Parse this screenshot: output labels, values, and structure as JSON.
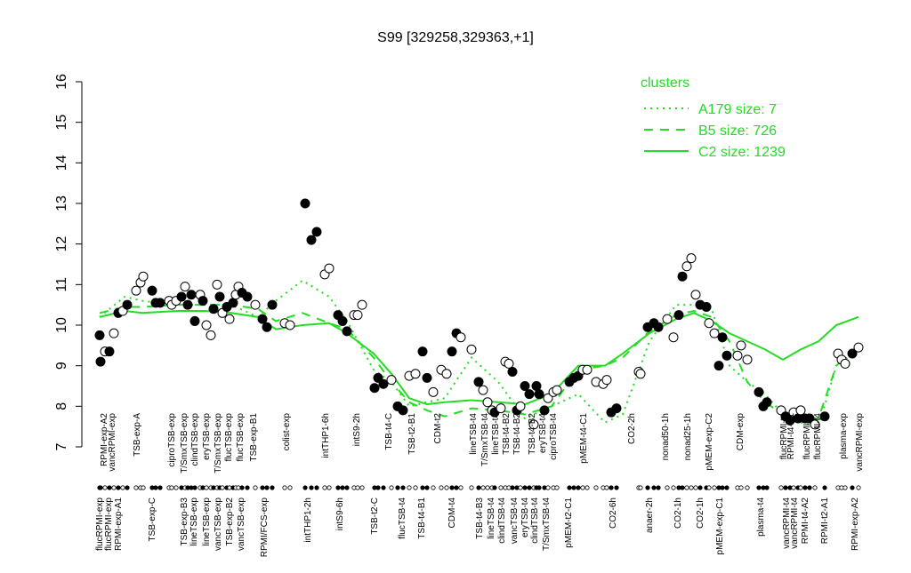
{
  "chart_data": {
    "type": "scatter",
    "title": "S99 [329258,329363,+1]",
    "xlim": [
      100,
      980
    ],
    "ylim": [
      7,
      16
    ],
    "yticks": [
      7,
      8,
      9,
      10,
      11,
      12,
      13,
      14,
      15,
      16
    ],
    "x": [
      112,
      113,
      118,
      123,
      128,
      133,
      138,
      143,
      153,
      158,
      161,
      171,
      175,
      180,
      190,
      193,
      198,
      204,
      208,
      211,
      215,
      219,
      225,
      228,
      232,
      237,
      240,
      244,
      247,
      250,
      255,
      258,
      262,
      265,
      268,
      272,
      278,
      287,
      295,
      300,
      306,
      320,
      326,
      343,
      350,
      356,
      365,
      370,
      380,
      385,
      390,
      398,
      402,
      407,
      421,
      425,
      431,
      440,
      447,
      453,
      460,
      467,
      475,
      480,
      487,
      496,
      502,
      508,
      513,
      518,
      530,
      538,
      543,
      548,
      553,
      556,
      563,
      568,
      572,
      576,
      581,
      585,
      590,
      595,
      600,
      603,
      606,
      612,
      616,
      622,
      626,
      640,
      645,
      650,
      655,
      660,
      670,
      678,
      682,
      687,
      693,
      718,
      720,
      728,
      735,
      740,
      750,
      757,
      763,
      767,
      772,
      777,
      782,
      787,
      794,
      797,
      803,
      808,
      812,
      817,
      829,
      833,
      840,
      853,
      858,
      862,
      878,
      883,
      888,
      892,
      897,
      900,
      905,
      910,
      916,
      927,
      942,
      946,
      950,
      958,
      965
    ],
    "values": [
      9.75,
      9.1,
      9.35,
      9.35,
      9.8,
      10.3,
      10.35,
      10.5,
      10.85,
      11.05,
      11.2,
      10.85,
      10.55,
      10.55,
      10.6,
      10.5,
      10.6,
      10.7,
      10.95,
      10.5,
      10.75,
      10.1,
      10.75,
      10.6,
      10.0,
      9.75,
      10.4,
      11.0,
      10.7,
      10.3,
      10.45,
      10.15,
      10.55,
      10.75,
      10.95,
      10.8,
      10.7,
      10.5,
      10.15,
      9.95,
      10.5,
      10.05,
      10.0,
      13.0,
      12.1,
      12.3,
      11.25,
      11.4,
      10.25,
      10.1,
      9.85,
      10.25,
      10.25,
      10.5,
      8.45,
      8.7,
      8.55,
      8.65,
      8.0,
      7.9,
      8.75,
      8.8,
      9.35,
      8.7,
      8.35,
      8.9,
      8.8,
      9.35,
      9.8,
      9.7,
      9.4,
      8.6,
      8.4,
      8.1,
      7.9,
      7.85,
      7.95,
      9.1,
      9.05,
      8.85,
      7.9,
      8.0,
      8.5,
      8.3,
      7.55,
      8.5,
      8.3,
      7.9,
      8.2,
      8.35,
      8.4,
      8.6,
      8.7,
      8.75,
      8.9,
      8.9,
      8.6,
      8.55,
      8.65,
      7.85,
      7.95,
      8.85,
      8.8,
      9.95,
      10.05,
      9.95,
      10.15,
      9.7,
      10.25,
      11.2,
      11.45,
      11.65,
      10.75,
      10.5,
      10.45,
      10.05,
      9.8,
      9.0,
      9.7,
      9.25,
      9.25,
      9.5,
      9.15,
      8.35,
      8.0,
      8.1,
      7.9,
      7.75,
      7.65,
      7.85,
      7.7,
      7.9,
      7.7,
      7.7,
      7.55,
      7.75,
      9.3,
      9.15,
      9.05,
      9.3,
      9.45
    ],
    "filled": [
      true,
      true,
      false,
      true,
      false,
      true,
      false,
      true,
      false,
      false,
      false,
      true,
      true,
      true,
      false,
      false,
      false,
      true,
      false,
      true,
      true,
      true,
      false,
      true,
      false,
      false,
      true,
      false,
      true,
      false,
      true,
      false,
      true,
      false,
      false,
      true,
      true,
      false,
      true,
      true,
      true,
      false,
      false,
      true,
      true,
      true,
      false,
      false,
      true,
      true,
      true,
      false,
      false,
      false,
      true,
      true,
      true,
      false,
      true,
      true,
      false,
      false,
      true,
      true,
      false,
      false,
      false,
      true,
      true,
      false,
      false,
      true,
      false,
      false,
      false,
      true,
      false,
      false,
      false,
      true,
      true,
      false,
      true,
      true,
      false,
      true,
      true,
      true,
      false,
      false,
      false,
      true,
      true,
      true,
      false,
      false,
      false,
      false,
      false,
      true,
      true,
      false,
      false,
      true,
      true,
      true,
      false,
      false,
      true,
      true,
      false,
      false,
      false,
      true,
      true,
      false,
      false,
      true,
      true,
      true,
      false,
      false,
      false,
      true,
      true,
      true,
      false,
      true,
      true,
      false,
      true,
      false,
      true,
      true,
      false,
      true,
      false,
      false,
      false,
      true,
      false
    ],
    "line_x": [
      112,
      140,
      160,
      200,
      230,
      260,
      290,
      310,
      340,
      370,
      390,
      420,
      440,
      460,
      480,
      500,
      530,
      560,
      590,
      620,
      650,
      680,
      700,
      730,
      760,
      780,
      800,
      820,
      840,
      860,
      880,
      900,
      920,
      940,
      965
    ],
    "legend_title": "clusters",
    "series": [
      {
        "name": "A179 size: 7",
        "color": "#22dd22",
        "dash": "dotted",
        "values": [
          10.2,
          10.7,
          10.6,
          10.5,
          10.5,
          10.5,
          10.2,
          10.6,
          11.1,
          10.7,
          10.1,
          8.9,
          8.6,
          8.0,
          8.1,
          8.2,
          9.2,
          8.6,
          7.7,
          8.0,
          8.3,
          7.6,
          7.8,
          9.6,
          10.5,
          10.5,
          10.4,
          9.0,
          8.6,
          8.3,
          7.8,
          7.6,
          7.5,
          9.0,
          9.4
        ]
      },
      {
        "name": "B5 size: 726",
        "color": "#22dd22",
        "dash": "dashed",
        "values": [
          10.3,
          10.45,
          10.45,
          10.5,
          10.5,
          10.5,
          10.4,
          10.1,
          10.3,
          10.05,
          9.9,
          9.2,
          8.6,
          8.1,
          7.9,
          7.75,
          7.95,
          7.9,
          7.8,
          8.0,
          8.9,
          9.0,
          9.2,
          9.85,
          10.25,
          10.35,
          10.2,
          9.6,
          8.6,
          8.1,
          7.8,
          7.7,
          7.7,
          9.0,
          9.5
        ]
      },
      {
        "name": "C2 size: 1239",
        "color": "#22dd22",
        "dash": "solid",
        "values": [
          10.2,
          10.35,
          10.3,
          10.35,
          10.35,
          10.3,
          10.2,
          9.9,
          10.0,
          10.05,
          9.8,
          9.3,
          8.8,
          8.2,
          8.05,
          8.1,
          8.15,
          8.1,
          8.05,
          8.3,
          9.0,
          9.0,
          9.3,
          9.8,
          10.15,
          10.3,
          10.1,
          9.8,
          9.6,
          9.4,
          9.15,
          9.4,
          9.6,
          10.0,
          10.2
        ]
      }
    ],
    "top_labels": [
      {
        "x": 117,
        "text": "RPMI-exp-A2"
      },
      {
        "x": 126,
        "text": "vancRPMI-exp"
      },
      {
        "x": 154,
        "text": "TSB-exp-A"
      },
      {
        "x": 193,
        "text": "ciproTSB-exp"
      },
      {
        "x": 207,
        "text": "T/SmxTSB-exp"
      },
      {
        "x": 219,
        "text": "clindTSB-exp"
      },
      {
        "x": 232,
        "text": "eryTSB-exp"
      },
      {
        "x": 245,
        "text": "T/SmxTSB-exp"
      },
      {
        "x": 257,
        "text": "flucTSB-exp"
      },
      {
        "x": 270,
        "text": "flucTSB-exp"
      },
      {
        "x": 285,
        "text": "TSB-exp-B1"
      },
      {
        "x": 322,
        "text": "colist-exp"
      },
      {
        "x": 366,
        "text": "intTHP1-6h"
      },
      {
        "x": 401,
        "text": "intS9-2h"
      },
      {
        "x": 437,
        "text": "TSB-t4-C"
      },
      {
        "x": 463,
        "text": "TSB-t2-B1"
      },
      {
        "x": 492,
        "text": "CDM-t2"
      },
      {
        "x": 532,
        "text": "lineTSB-t4"
      },
      {
        "x": 545,
        "text": "T/SmxTSB-t4"
      },
      {
        "x": 557,
        "text": "lineTSB-t4"
      },
      {
        "x": 569,
        "text": "TSB-t4-B2"
      },
      {
        "x": 581,
        "text": "TSB-t4-B2"
      },
      {
        "x": 598,
        "text": "TSB-t4-B2"
      },
      {
        "x": 610,
        "text": "eryTSB-t4"
      },
      {
        "x": 622,
        "text": "ciproTSB-t4"
      },
      {
        "x": 656,
        "text": "pMEM-t4-C1"
      },
      {
        "x": 710,
        "text": "CO2-2h"
      },
      {
        "x": 748,
        "text": "nonad50-1h"
      },
      {
        "x": 773,
        "text": "nonad25-1h"
      },
      {
        "x": 797,
        "text": "pMEM-exp-C2"
      },
      {
        "x": 832,
        "text": "CDM-exp"
      },
      {
        "x": 881,
        "text": "flucRPMI-t4"
      },
      {
        "x": 889,
        "text": "RPMI-t4-A1"
      },
      {
        "x": 907,
        "text": "flucRPMI-t4"
      },
      {
        "x": 919,
        "text": "flucRPMI-t4"
      },
      {
        "x": 948,
        "text": "plasma-exp"
      },
      {
        "x": 966,
        "text": "vancRPMI-exp"
      }
    ],
    "bottom_labels": [
      {
        "x": 112,
        "text": "flucRPMI-exp"
      },
      {
        "x": 122,
        "text": "flucRPMI-exp"
      },
      {
        "x": 133,
        "text": "RPMI-exp-A1"
      },
      {
        "x": 171,
        "text": "TSB-exp-C"
      },
      {
        "x": 207,
        "text": "TSB-exp-B3"
      },
      {
        "x": 218,
        "text": "lineTSB-exp"
      },
      {
        "x": 232,
        "text": "lineTSB-exp"
      },
      {
        "x": 245,
        "text": "vancTSB-exp"
      },
      {
        "x": 258,
        "text": "TSB-exp-B2"
      },
      {
        "x": 271,
        "text": "vancTSB-exp"
      },
      {
        "x": 297,
        "text": "RPMI/FCS-exp"
      },
      {
        "x": 346,
        "text": "intTHP1-2h"
      },
      {
        "x": 382,
        "text": "intS9-6h"
      },
      {
        "x": 421,
        "text": "TSB-t2-C"
      },
      {
        "x": 452,
        "text": "flucTSB-t4"
      },
      {
        "x": 474,
        "text": "TSB-t4-B1"
      },
      {
        "x": 508,
        "text": "CDM-t4"
      },
      {
        "x": 539,
        "text": "TSB-t4-B3"
      },
      {
        "x": 552,
        "text": "lineTSB-t4"
      },
      {
        "x": 564,
        "text": "clindTSB-t4"
      },
      {
        "x": 578,
        "text": "vancTSB-t4"
      },
      {
        "x": 590,
        "text": "eryTSB-t4"
      },
      {
        "x": 601,
        "text": "clindTSB-t4"
      },
      {
        "x": 614,
        "text": "T/SmxTSB-t4"
      },
      {
        "x": 639,
        "text": "pMEM-t2-C1"
      },
      {
        "x": 689,
        "text": "CO2-6h"
      },
      {
        "x": 730,
        "text": "anaer-2h"
      },
      {
        "x": 762,
        "text": "CO2-1h"
      },
      {
        "x": 787,
        "text": "CO2-1h"
      },
      {
        "x": 809,
        "text": "pMEM-exp-C1"
      },
      {
        "x": 855,
        "text": "plasma-t4"
      },
      {
        "x": 884,
        "text": "vancRPMI-t4"
      },
      {
        "x": 893,
        "text": "vancRPMI-t4"
      },
      {
        "x": 905,
        "text": "RPMI-t4-A2"
      },
      {
        "x": 927,
        "text": "RPMI-t2-A1"
      },
      {
        "x": 961,
        "text": "RPMI-exp-A2"
      }
    ]
  }
}
